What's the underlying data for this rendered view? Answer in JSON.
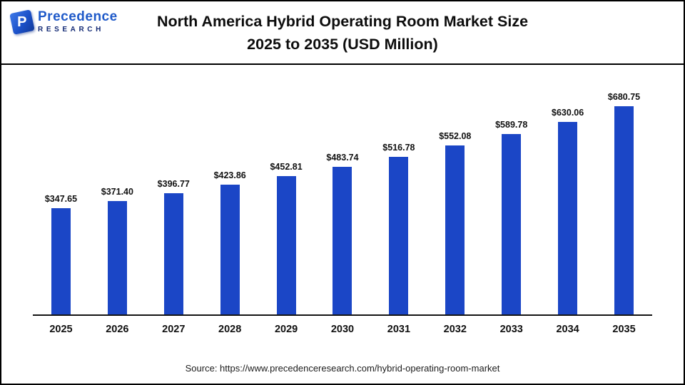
{
  "header": {
    "logo_name": "Precedence",
    "logo_sub": "RESEARCH",
    "logo_mark_letter": "P",
    "title_line1": "North America Hybrid Operating Room Market Size",
    "title_line2": "2025 to 2035 (USD Million)"
  },
  "footer": {
    "source": "Source: https://www.precedenceresearch.com/hybrid-operating-room-market"
  },
  "chart_data": {
    "type": "bar",
    "title": "North America Hybrid Operating Room Market Size 2025 to 2035 (USD Million)",
    "categories": [
      "2025",
      "2026",
      "2027",
      "2028",
      "2029",
      "2030",
      "2031",
      "2032",
      "2033",
      "2034",
      "2035"
    ],
    "values": [
      347.65,
      371.4,
      396.77,
      423.86,
      452.81,
      483.74,
      516.78,
      552.08,
      589.78,
      630.06,
      680.75
    ],
    "value_labels": [
      "$347.65",
      "$371.40",
      "$396.77",
      "$423.86",
      "$452.81",
      "$483.74",
      "$516.78",
      "$552.08",
      "$589.78",
      "$630.06",
      "$680.75"
    ],
    "xlabel": "",
    "ylabel": "",
    "ylim": [
      0,
      700
    ],
    "grid": false,
    "legend": false,
    "bar_color": "#1b46c6"
  }
}
